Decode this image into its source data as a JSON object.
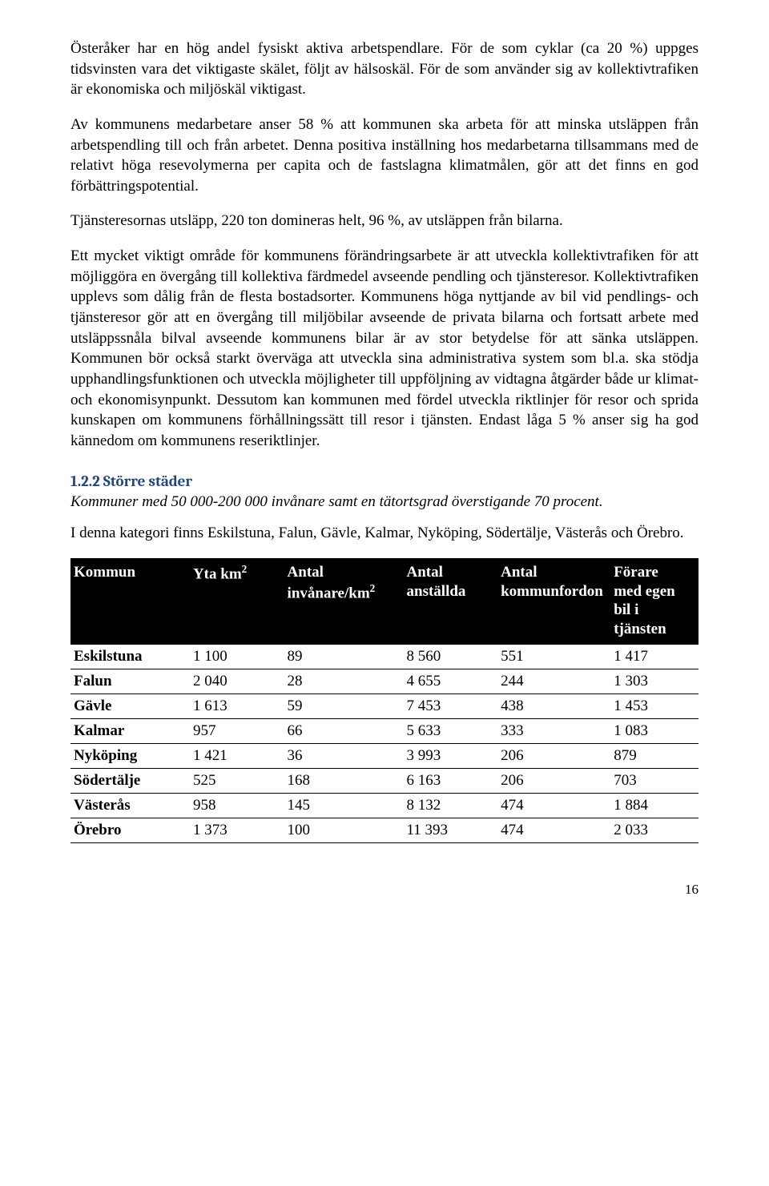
{
  "paragraphs": {
    "p1": "Österåker har en hög andel fysiskt aktiva arbetspendlare. För de som cyklar (ca 20 %) uppges tidsvinsten vara det viktigaste skälet, följt av hälsoskäl. För de som använder sig av kollektivtrafiken är ekonomiska och miljöskäl viktigast.",
    "p2": "Av kommunens medarbetare anser 58 % att kommunen ska arbeta för att minska utsläppen från arbetspendling till och från arbetet. Denna positiva inställning hos medarbetarna tillsammans med de relativt höga resevolymerna per capita och de fastslagna klimatmålen, gör att det finns en god förbättringspotential.",
    "p3": "Tjänsteresornas utsläpp, 220 ton domineras helt, 96 %, av utsläppen från bilarna.",
    "p4": "Ett mycket viktigt område för kommunens förändringsarbete är att utveckla kollektivtrafiken för att möjliggöra en övergång till kollektiva färdmedel avseende pendling och tjänsteresor. Kollektivtrafiken upplevs som dålig från de flesta bostadsorter. Kommunens höga nyttjande av bil vid pendlings- och tjänsteresor gör att en övergång till miljöbilar avseende de privata bilarna och fortsatt arbete med utsläppssnåla bilval avseende kommunens bilar är av stor betydelse för att sänka utsläppen. Kommunen bör också starkt överväga att utveckla sina administrativa system som bl.a. ska stödja upphandlingsfunktionen och utveckla möjligheter till uppföljning av vidtagna åtgärder både ur klimat- och ekonomisynpunkt. Dessutom kan kommunen med fördel utveckla riktlinjer för resor och sprida kunskapen om kommunens förhållningssätt till resor i tjänsten. Endast låga 5 % anser sig ha god kännedom om kommunens reseriktlinjer."
  },
  "section": {
    "heading": "1.2.2 Större städer",
    "subtitle": "Kommuner med 50 000-200 000 invånare samt en tätortsgrad överstigande 70 procent.",
    "intro": "I denna kategori finns Eskilstuna, Falun, Gävle, Kalmar, Nyköping, Södertälje, Västerås och Örebro."
  },
  "table": {
    "header_bg": "#000000",
    "header_fg": "#ffffff",
    "columns": [
      "Kommun",
      "Yta km²",
      "Antal invånare/km²",
      "Antal anställda",
      "Antal kommunfordon",
      "Förare med egen bil i tjänsten"
    ],
    "col_widths": [
      "19%",
      "15%",
      "19%",
      "15%",
      "18%",
      "14%"
    ],
    "rows": [
      [
        "Eskilstuna",
        "1 100",
        "89",
        "8 560",
        "551",
        "1 417"
      ],
      [
        "Falun",
        "2 040",
        "28",
        "4 655",
        "244",
        "1 303"
      ],
      [
        "Gävle",
        "1 613",
        "59",
        "7 453",
        "438",
        "1 453"
      ],
      [
        "Kalmar",
        "957",
        "66",
        "5 633",
        "333",
        "1 083"
      ],
      [
        "Nyköping",
        "1 421",
        "36",
        "3 993",
        "206",
        "879"
      ],
      [
        "Södertälje",
        "525",
        "168",
        "6 163",
        "206",
        "703"
      ],
      [
        "Västerås",
        "958",
        "145",
        "8 132",
        "474",
        "1 884"
      ],
      [
        "Örebro",
        "1 373",
        "100",
        "11 393",
        "474",
        "2 033"
      ]
    ]
  },
  "page_number": "16"
}
